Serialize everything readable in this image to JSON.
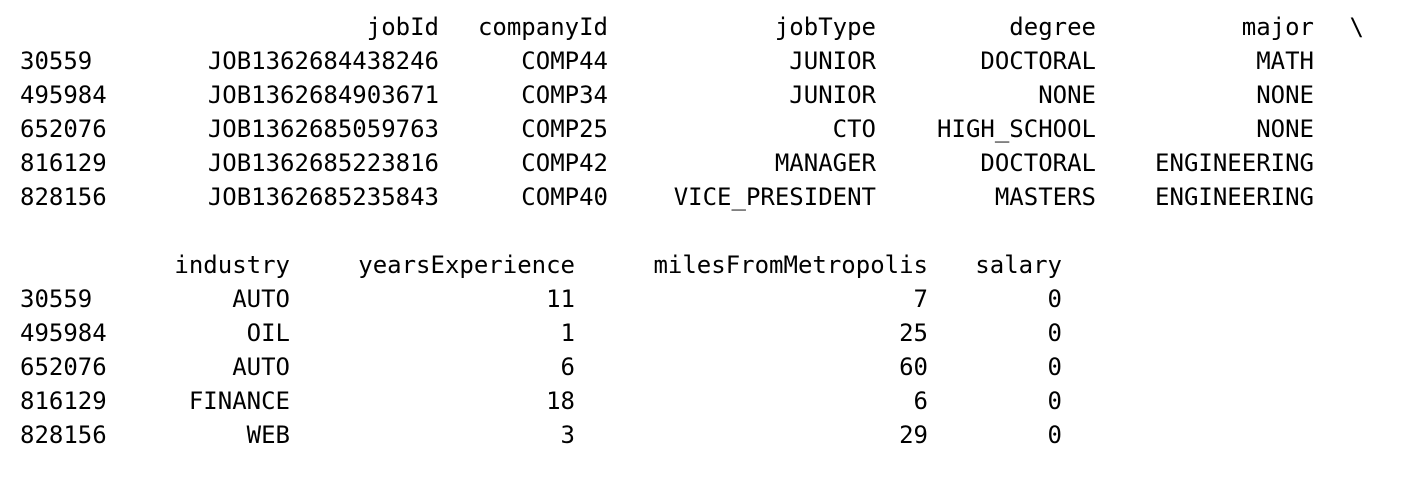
{
  "table1": {
    "columns": [
      "jobId",
      "companyId",
      "jobType",
      "degree",
      "major"
    ],
    "continuation": "\\",
    "rows": [
      {
        "index": "30559",
        "jobId": "JOB1362684438246",
        "companyId": "COMP44",
        "jobType": "JUNIOR",
        "degree": "DOCTORAL",
        "major": "MATH"
      },
      {
        "index": "495984",
        "jobId": "JOB1362684903671",
        "companyId": "COMP34",
        "jobType": "JUNIOR",
        "degree": "NONE",
        "major": "NONE"
      },
      {
        "index": "652076",
        "jobId": "JOB1362685059763",
        "companyId": "COMP25",
        "jobType": "CTO",
        "degree": "HIGH_SCHOOL",
        "major": "NONE"
      },
      {
        "index": "816129",
        "jobId": "JOB1362685223816",
        "companyId": "COMP42",
        "jobType": "MANAGER",
        "degree": "DOCTORAL",
        "major": "ENGINEERING"
      },
      {
        "index": "828156",
        "jobId": "JOB1362685235843",
        "companyId": "COMP40",
        "jobType": "VICE_PRESIDENT",
        "degree": "MASTERS",
        "major": "ENGINEERING"
      }
    ]
  },
  "table2": {
    "columns": [
      "industry",
      "yearsExperience",
      "milesFromMetropolis",
      "salary"
    ],
    "rows": [
      {
        "index": "30559",
        "industry": "AUTO",
        "yearsExperience": "11",
        "milesFromMetropolis": "7",
        "salary": "0"
      },
      {
        "index": "495984",
        "industry": "OIL",
        "yearsExperience": "1",
        "milesFromMetropolis": "25",
        "salary": "0"
      },
      {
        "index": "652076",
        "industry": "AUTO",
        "yearsExperience": "6",
        "milesFromMetropolis": "60",
        "salary": "0"
      },
      {
        "index": "816129",
        "industry": "FINANCE",
        "yearsExperience": "18",
        "milesFromMetropolis": "6",
        "salary": "0"
      },
      {
        "index": "828156",
        "industry": "WEB",
        "yearsExperience": "3",
        "milesFromMetropolis": "29",
        "salary": "0"
      }
    ]
  }
}
